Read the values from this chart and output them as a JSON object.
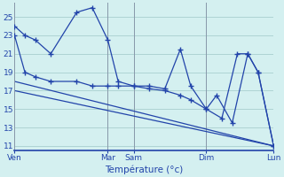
{
  "xlabel": "Température (°c)",
  "bg_color": "#d4f0f0",
  "grid_color": "#aed4d4",
  "line_color": "#2244aa",
  "xtick_labels": [
    "Ven",
    "Mar",
    "Sam",
    "Dim",
    "Lun"
  ],
  "xtick_positions": [
    0,
    36,
    46,
    74,
    100
  ],
  "ylim": [
    10.5,
    26.5
  ],
  "yticks": [
    11,
    13,
    15,
    17,
    19,
    21,
    23,
    25
  ],
  "vline_x": [
    0,
    36,
    46,
    74,
    100
  ],
  "line1_x": [
    0,
    4,
    8,
    14,
    24,
    30,
    36,
    40,
    46,
    52,
    58,
    64,
    68,
    74,
    80,
    86,
    90,
    94,
    100
  ],
  "line1_y": [
    24.0,
    23.0,
    22.5,
    21.0,
    25.5,
    26.0,
    22.5,
    18.0,
    17.5,
    17.5,
    17.2,
    21.5,
    17.5,
    15.0,
    14.0,
    21.0,
    21.0,
    19.0,
    11.0
  ],
  "line2_x": [
    0,
    4,
    8,
    14,
    24,
    30,
    36,
    40,
    46,
    52,
    58,
    64,
    68,
    74,
    78,
    84,
    90,
    94,
    100
  ],
  "line2_y": [
    23.0,
    19.0,
    18.5,
    18.0,
    18.0,
    17.5,
    17.5,
    17.5,
    17.5,
    17.2,
    17.0,
    16.5,
    16.0,
    15.0,
    16.5,
    13.5,
    21.0,
    19.0,
    11.0
  ],
  "line3_x": [
    0,
    100
  ],
  "line3_y": [
    18.0,
    11.0
  ],
  "line4_x": [
    0,
    100
  ],
  "line4_y": [
    17.0,
    11.0
  ]
}
